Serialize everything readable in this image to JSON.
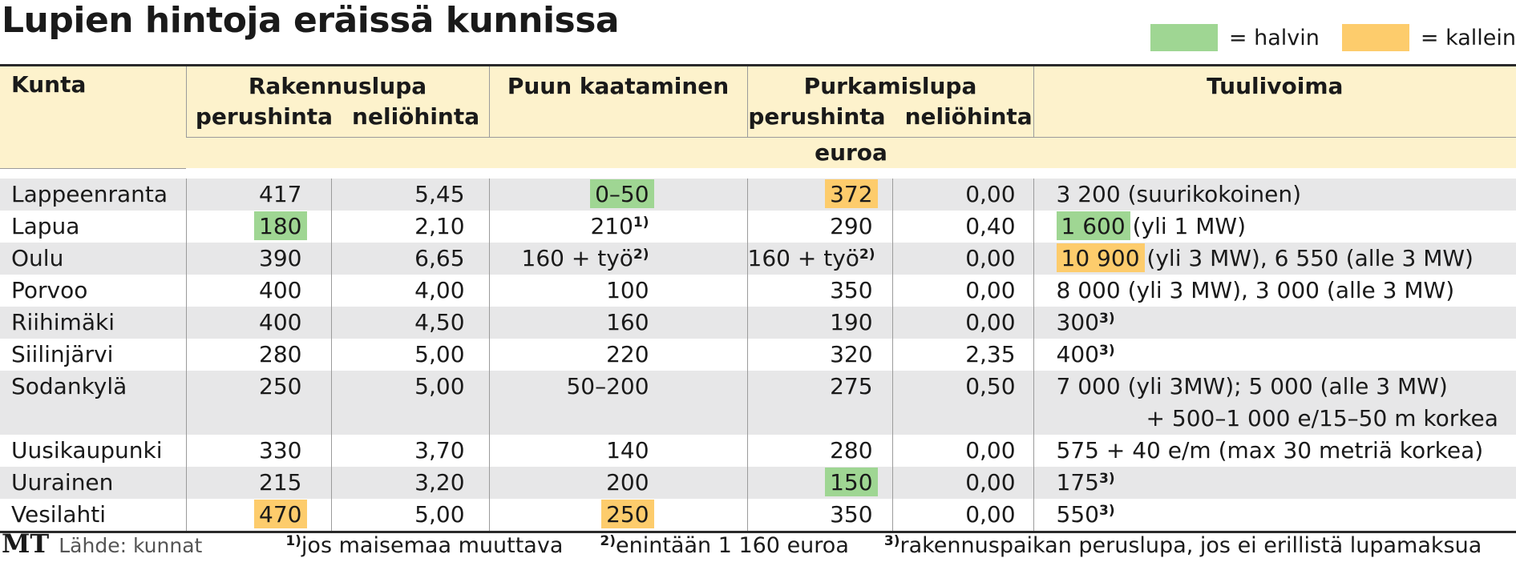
{
  "title": "Lupien hintoja eräissä kunnissa",
  "legend": [
    {
      "label": "= halvin",
      "color": "#9fd693"
    },
    {
      "label": "= kallein",
      "color": "#fdcc6c"
    }
  ],
  "headers": {
    "kunta": "Kunta",
    "rakennuslupa": "Rakennuslupa",
    "puun_kaataminen": "Puun kaataminen",
    "purkamislupa": "Purkamislupa",
    "tuulivoima": "Tuulivoima",
    "perushinta": "perushinta",
    "neliohinta": "neliöhinta",
    "unit": "euroa"
  },
  "rows": [
    {
      "kunta": "Lappeenranta",
      "rak_perus": "417",
      "rak_nelio": "5,45",
      "puu": "0–50",
      "puu_hl": "green",
      "pur_perus": "372",
      "pur_perus_hl": "orange",
      "pur_nelio": "0,00",
      "tuuli": "3 200",
      "tuuli_note": " (suurikokoinen)"
    },
    {
      "kunta": "Lapua",
      "rak_perus": "180",
      "rak_perus_hl": "green",
      "rak_nelio": "2,10",
      "puu": "210",
      "puu_sup": "1)",
      "pur_perus": "290",
      "pur_nelio": "0,40",
      "tuuli": "1 600",
      "tuuli_hl": "green",
      "tuuli_note": " (yli 1 MW)"
    },
    {
      "kunta": "Oulu",
      "rak_perus": "390",
      "rak_nelio": "6,65",
      "puu": "160 + työ",
      "puu_sup": "2)",
      "pur_perus": "160 + työ",
      "pur_sup": "2)",
      "pur_nelio": "0,00",
      "tuuli": "10 900",
      "tuuli_hl": "orange",
      "tuuli_note": " (yli 3 MW), 6 550 (alle 3 MW)"
    },
    {
      "kunta": "Porvoo",
      "rak_perus": "400",
      "rak_nelio": "4,00",
      "puu": "100",
      "pur_perus": "350",
      "pur_nelio": "0,00",
      "tuuli": "8 000",
      "tuuli_note": " (yli 3 MW), 3 000 (alle 3 MW)"
    },
    {
      "kunta": "Riihimäki",
      "rak_perus": "400",
      "rak_nelio": "4,50",
      "puu": "160",
      "pur_perus": "190",
      "pur_nelio": "0,00",
      "tuuli": "300",
      "tuuli_sup": "3)"
    },
    {
      "kunta": "Siilinjärvi",
      "rak_perus": "280",
      "rak_nelio": "5,00",
      "puu": "220",
      "pur_perus": "320",
      "pur_nelio": "2,35",
      "tuuli": "400",
      "tuuli_sup": "3)"
    },
    {
      "kunta": "Sodankylä",
      "rak_perus": "250",
      "rak_nelio": "5,00",
      "puu": "50–200",
      "pur_perus": "275",
      "pur_nelio": "0,50",
      "tuuli": "7 000",
      "tuuli_note": " (yli 3MW); 5 000 (alle 3 MW)",
      "tuuli_line2": "+ 500–1 000 e/15–50 m korkea"
    },
    {
      "kunta": "Uusikaupunki",
      "rak_perus": "330",
      "rak_nelio": "3,70",
      "puu": "140",
      "pur_perus": "280",
      "pur_nelio": "0,00",
      "tuuli": "575",
      "tuuli_note": " + 40 e/m (max 30 metriä korkea)"
    },
    {
      "kunta": "Uurainen",
      "rak_perus": "215",
      "rak_nelio": "3,20",
      "puu": "200",
      "pur_perus": "150",
      "pur_perus_hl": "green",
      "pur_nelio": "0,00",
      "tuuli": "175",
      "tuuli_sup": "3)"
    },
    {
      "kunta": "Vesilahti",
      "rak_perus": "470",
      "rak_perus_hl": "orange",
      "rak_nelio": "5,00",
      "puu": "250",
      "puu_hl": "orange",
      "pur_perus": "350",
      "pur_nelio": "0,00",
      "tuuli": "550",
      "tuuli_sup": "3)"
    }
  ],
  "footer": {
    "logo": "MT",
    "source": "Lähde: kunnat",
    "notes": [
      {
        "mark": "1)",
        "text": "jos maisemaa muuttava"
      },
      {
        "mark": "2)",
        "text": "enintään 1 160 euroa"
      },
      {
        "mark": "3)",
        "text": "rakennuspaikan peruslupa, jos ei erillistä lupamaksua"
      }
    ]
  }
}
